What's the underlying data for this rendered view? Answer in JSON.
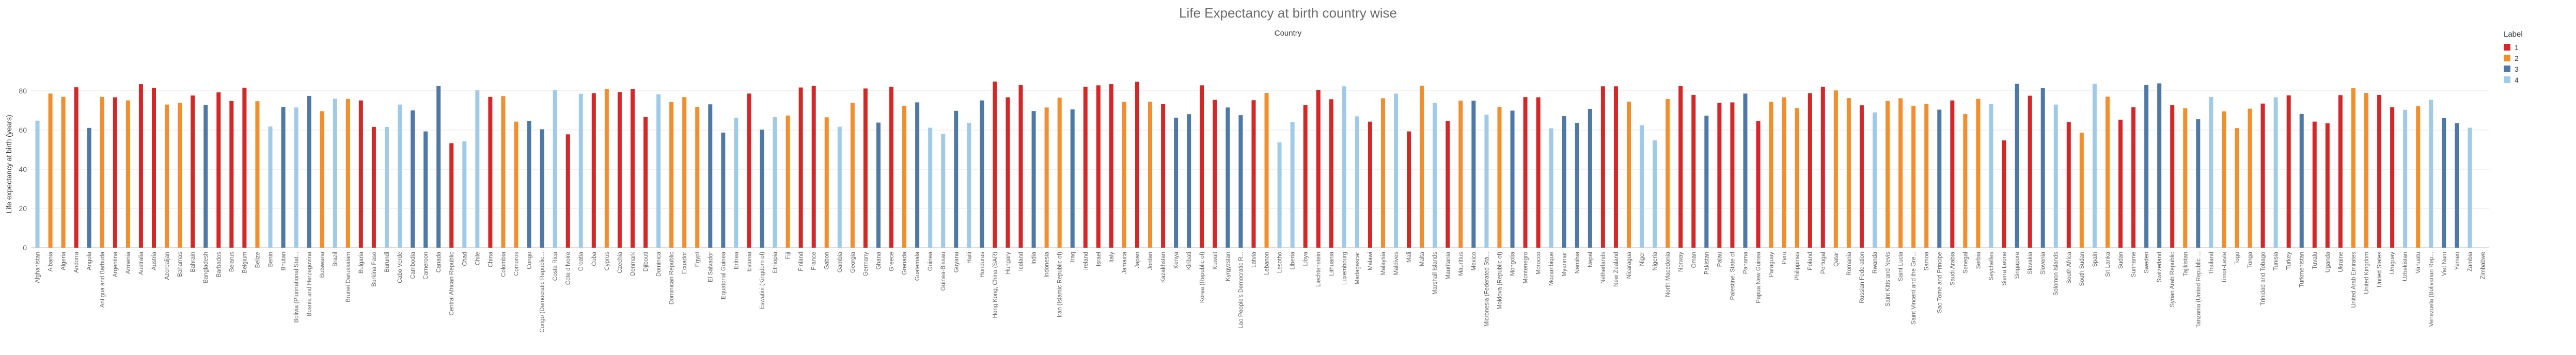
{
  "chart_data": {
    "type": "bar",
    "title": "Life Expectancy at birth country wise",
    "column_header": "Country",
    "ylabel": "Life expectancy at birth (years)",
    "ylim": [
      0,
      100
    ],
    "yticks": [
      0,
      20,
      40,
      60,
      80
    ],
    "grid": true,
    "legend": {
      "title": "Label",
      "placement": "top-right",
      "entries": [
        {
          "label": "1",
          "color": "#d62728"
        },
        {
          "label": "2",
          "color": "#f28e2b"
        },
        {
          "label": "3",
          "color": "#4e79a7"
        },
        {
          "label": "4",
          "color": "#a0cbe8"
        }
      ]
    },
    "colors": {
      "1": "#d62728",
      "2": "#f28e2b",
      "3": "#4e79a7",
      "4": "#a0cbe8"
    },
    "categories": [
      "Afghanistan",
      "Albania",
      "Algeria",
      "Andorra",
      "Angola",
      "Antigua and Barbuda",
      "Argentina",
      "Armenia",
      "Australia",
      "Austria",
      "Azerbaijan",
      "Bahamas",
      "Bahrain",
      "Bangladesh",
      "Barbados",
      "Belarus",
      "Belgium",
      "Belize",
      "Benin",
      "Bhutan",
      "Bolivia (Plurinational Stat...",
      "Bosnia and Herzegovina",
      "Botswana",
      "Brazil",
      "Brunei Darussalam",
      "Bulgaria",
      "Burkina Faso",
      "Burundi",
      "Cabo Verde",
      "Cambodia",
      "Cameroon",
      "Canada",
      "Central African Republic",
      "Chad",
      "Chile",
      "China",
      "Colombia",
      "Comoros",
      "Congo",
      "Congo (Democratic Republic...",
      "Costa Rica",
      "Cote d'Ivoire",
      "Croatia",
      "Cuba",
      "Cyprus",
      "Czechia",
      "Denmark",
      "Djibouti",
      "Dominica",
      "Dominican Republic",
      "Ecuador",
      "Egypt",
      "El Salvador",
      "Equatorial Guinea",
      "Eritrea",
      "Estonia",
      "Eswatini (Kingdom of)",
      "Ethiopia",
      "Fiji",
      "Finland",
      "France",
      "Gabon",
      "Gambia",
      "Georgia",
      "Germany",
      "Ghana",
      "Greece",
      "Grenada",
      "Guatemala",
      "Guinea",
      "Guinea-Bissau",
      "Guyana",
      "Haiti",
      "Honduras",
      "Hong Kong, China (SAR)",
      "Hungary",
      "Iceland",
      "India",
      "Indonesia",
      "Iran (Islamic Republic of)",
      "Iraq",
      "Ireland",
      "Israel",
      "Italy",
      "Jamaica",
      "Japan",
      "Jordan",
      "Kazakhstan",
      "Kenya",
      "Kiribati",
      "Korea (Republic of)",
      "Kuwait",
      "Kyrgyzstan",
      "Lao People's Democratic R...",
      "Latvia",
      "Lebanon",
      "Lesotho",
      "Liberia",
      "Libya",
      "Liechtenstein",
      "Lithuania",
      "Luxembourg",
      "Madagascar",
      "Malawi",
      "Malaysia",
      "Maldives",
      "Mali",
      "Malta",
      "Marshall Islands",
      "Mauritania",
      "Mauritius",
      "Mexico",
      "Micronesia (Federated Sta...",
      "Moldova (Republic of)",
      "Mongolia",
      "Montenegro",
      "Morocco",
      "Mozambique",
      "Myanmar",
      "Namibia",
      "Nepal",
      "Netherlands",
      "New Zealand",
      "Nicaragua",
      "Niger",
      "Nigeria",
      "North Macedonia",
      "Norway",
      "Oman",
      "Pakistan",
      "Palau",
      "Palestine, State of",
      "Panama",
      "Papua New Guinea",
      "Paraguay",
      "Peru",
      "Philippines",
      "Poland",
      "Portugal",
      "Qatar",
      "Romania",
      "Russian Federation",
      "Rwanda",
      "Saint Kitts and Nevis",
      "Saint Lucia",
      "Saint Vincent and the Gre...",
      "Samoa",
      "Sao Tome and Principe",
      "Saudi Arabia",
      "Senegal",
      "Serbia",
      "Seychelles",
      "Sierra Leone",
      "Singapore",
      "Slovakia",
      "Slovenia",
      "Solomon Islands",
      "South Africa",
      "South Sudan",
      "Spain",
      "Sri Lanka",
      "Sudan",
      "Suriname",
      "Sweden",
      "Switzerland",
      "Syrian Arab Republic",
      "Tajikistan",
      "Tanzania (United Republic ...",
      "Thailand",
      "Timor-Leste",
      "Togo",
      "Tonga",
      "Trinidad and Tobago",
      "Tunisia",
      "Turkey",
      "Turkmenistan",
      "Tuvalu",
      "Uganda",
      "Ukraine",
      "United Arab Emirates",
      "United Kingdom",
      "United States",
      "Uruguay",
      "Uzbekistan",
      "Vanuatu",
      "Venezuela (Bolivarian Rep...",
      "Viet Nam",
      "Yemen",
      "Zambia",
      "Zimbabwe"
    ],
    "labels": [
      "4",
      "2",
      "2",
      "1",
      "3",
      "2",
      "1",
      "2",
      "1",
      "1",
      "2",
      "2",
      "1",
      "3",
      "1",
      "1",
      "1",
      "2",
      "4",
      "3",
      "4",
      "3",
      "2",
      "4",
      "2",
      "1",
      "1",
      "4",
      "4",
      "3",
      "3",
      "3",
      "1",
      "4",
      "4",
      "1",
      "2",
      "2",
      "3",
      "3",
      "4",
      "1",
      "4",
      "1",
      "2",
      "1",
      "1",
      "1",
      "4",
      "2",
      "2",
      "2",
      "3",
      "3",
      "4",
      "1",
      "3",
      "4",
      "2",
      "1",
      "1",
      "2",
      "4",
      "2",
      "1",
      "3",
      "1",
      "2",
      "3",
      "4",
      "4",
      "3",
      "4",
      "3",
      "1",
      "1",
      "1",
      "3",
      "2",
      "2",
      "3",
      "1",
      "1",
      "1",
      "2",
      "1",
      "2",
      "1",
      "3",
      "3",
      "1",
      "1",
      "3",
      "3",
      "1",
      "2",
      "4",
      "4",
      "1",
      "1",
      "1",
      "4",
      "4",
      "1",
      "2",
      "4",
      "1",
      "2",
      "4",
      "1",
      "2",
      "3",
      "4",
      "2",
      "3",
      "1",
      "1",
      "4",
      "3",
      "3",
      "3",
      "1",
      "1",
      "2",
      "4",
      "4",
      "2",
      "1",
      "1",
      "3",
      "1",
      "1",
      "3",
      "1",
      "2",
      "2",
      "2",
      "1",
      "1",
      "2",
      "2",
      "1",
      "4",
      "2",
      "2",
      "2",
      "2",
      "3",
      "1",
      "2",
      "2",
      "4",
      "1",
      "3",
      "1",
      "3",
      "4",
      "1",
      "2",
      "4",
      "2",
      "1",
      "1",
      "3",
      "3",
      "1",
      "2",
      "3",
      "4",
      "2",
      "2",
      "2",
      "1",
      "4",
      "1",
      "3",
      "1",
      "1",
      "1",
      "2",
      "2",
      "1",
      "1",
      "4",
      "2",
      "4",
      "3",
      "3",
      "4"
    ],
    "values": [
      64.8,
      78.6,
      76.9,
      81.8,
      61.1,
      76.9,
      76.7,
      75.1,
      83.4,
      81.5,
      73.0,
      73.9,
      77.6,
      72.8,
      79.2,
      74.8,
      81.6,
      74.7,
      61.8,
      71.8,
      71.5,
      77.4,
      69.6,
      75.9,
      75.9,
      75.1,
      61.6,
      61.6,
      73.0,
      70.0,
      59.3,
      82.4,
      53.3,
      54.2,
      80.3,
      76.9,
      77.3,
      64.3,
      64.6,
      60.4,
      80.3,
      57.8,
      78.5,
      78.8,
      80.9,
      79.4,
      81.0,
      66.6,
      78.2,
      74.3,
      76.8,
      71.8,
      73.1,
      58.7,
      66.3,
      78.6,
      60.2,
      66.6,
      67.4,
      81.7,
      82.5,
      66.5,
      61.7,
      73.8,
      81.2,
      63.8,
      82.1,
      72.4,
      74.1,
      61.2,
      58.0,
      69.8,
      63.7,
      75.1,
      84.7,
      76.7,
      82.9,
      69.7,
      71.5,
      76.5,
      70.5,
      82.1,
      82.8,
      83.4,
      74.4,
      84.6,
      74.5,
      73.2,
      66.3,
      68.1,
      82.8,
      75.4,
      71.5,
      67.6,
      75.2,
      78.9,
      53.7,
      64.1,
      72.7,
      80.5,
      75.7,
      82.3,
      67.0,
      64.3,
      76.2,
      78.6,
      59.3,
      82.6,
      73.9,
      64.7,
      75.0,
      75.0,
      67.8,
      71.8,
      69.9,
      76.8,
      76.7,
      60.9,
      67.1,
      63.7,
      70.8,
      82.3,
      82.3,
      74.5,
      62.4,
      54.7,
      75.8,
      82.4,
      77.9,
      67.3,
      73.9,
      74.1,
      78.6,
      64.5,
      74.4,
      76.7,
      71.2,
      78.8,
      82.1,
      80.2,
      76.3,
      72.6,
      69.0,
      74.8,
      76.2,
      72.4,
      73.4,
      70.4,
      75.1,
      68.2,
      75.9,
      73.3,
      54.7,
      83.6,
      77.5,
      81.4,
      73.0,
      64.1,
      58.6,
      83.6,
      77.0,
      65.3,
      71.6,
      82.9,
      83.8,
      72.7,
      71.1,
      65.5,
      76.9,
      69.5,
      61.0,
      70.9,
      73.5,
      76.7,
      77.7,
      68.2,
      64.3,
      63.4,
      77.8,
      81.3,
      78.9,
      77.9,
      71.6,
      70.3,
      72.1,
      75.4,
      66.1,
      63.5,
      61.2
    ]
  }
}
